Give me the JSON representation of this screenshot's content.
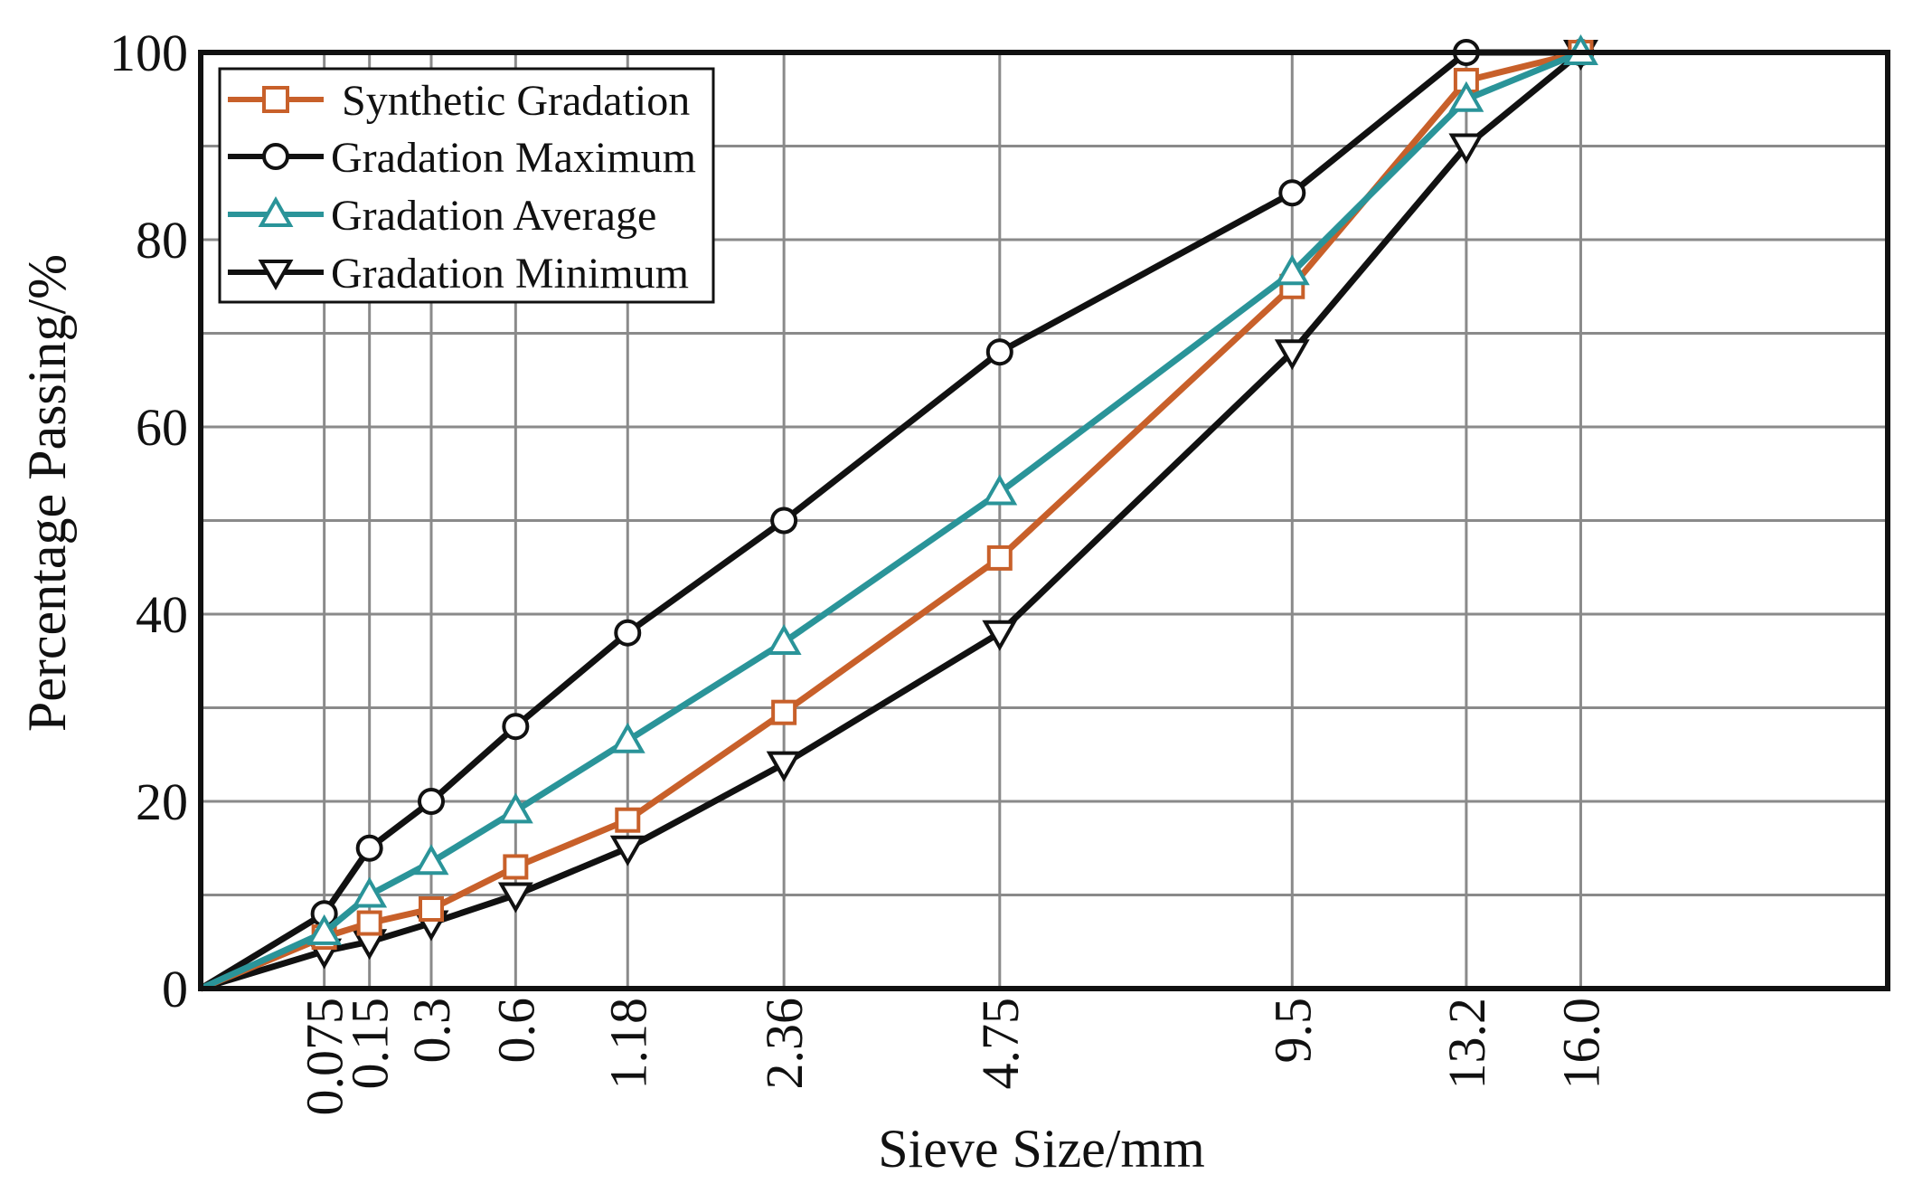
{
  "chart_data": {
    "type": "line",
    "title": "",
    "xlabel": "Sieve Size/mm",
    "ylabel": "Percentage Passing/%",
    "ylim": [
      0,
      100
    ],
    "y_ticks": [
      0,
      20,
      40,
      60,
      80,
      100
    ],
    "grid": true,
    "legend_position": "top-left",
    "x_scale": "power 0.45 (sieve-size scale)",
    "x_domain_end": 25,
    "x": [
      0.075,
      0.15,
      0.3,
      0.6,
      1.18,
      2.36,
      4.75,
      9.5,
      13.2,
      16.0
    ],
    "x_tick_labels": [
      "0.075",
      "0.15",
      "0.3",
      "0.6",
      "1.18",
      "2.36",
      "4.75",
      "9.5",
      "13.2",
      "16.0"
    ],
    "series": [
      {
        "name": "Synthetic Gradation",
        "color": "#C8602A",
        "marker": "square",
        "values": [
          5.5,
          7,
          8.5,
          13,
          18,
          29.5,
          46,
          75,
          97,
          100
        ]
      },
      {
        "name": "Gradation Maximum",
        "color": "#111111",
        "marker": "circle",
        "values": [
          8,
          15,
          20,
          28,
          38,
          50,
          68,
          85,
          100,
          100
        ]
      },
      {
        "name": "Gradation Average",
        "color": "#2A9499",
        "marker": "triangle-up",
        "values": [
          6,
          10,
          13.5,
          19,
          26.5,
          37,
          53,
          76.5,
          95,
          100
        ]
      },
      {
        "name": "Gradation Minimum",
        "color": "#111111",
        "marker": "triangle-down",
        "values": [
          4,
          5,
          7,
          10,
          15,
          24,
          38,
          68,
          90,
          100
        ]
      }
    ]
  }
}
